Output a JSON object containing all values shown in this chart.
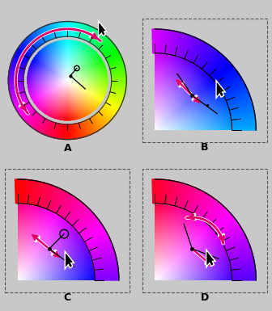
{
  "bg_color": "#c8c8c8",
  "label_A": "A",
  "label_B": "B",
  "label_C": "C",
  "label_D": "D",
  "label_fontsize": 9,
  "label_fontweight": "bold",
  "arrow_color": "#e0006c",
  "bg_r": 0.784,
  "bg_g": 0.784,
  "bg_b": 0.784
}
